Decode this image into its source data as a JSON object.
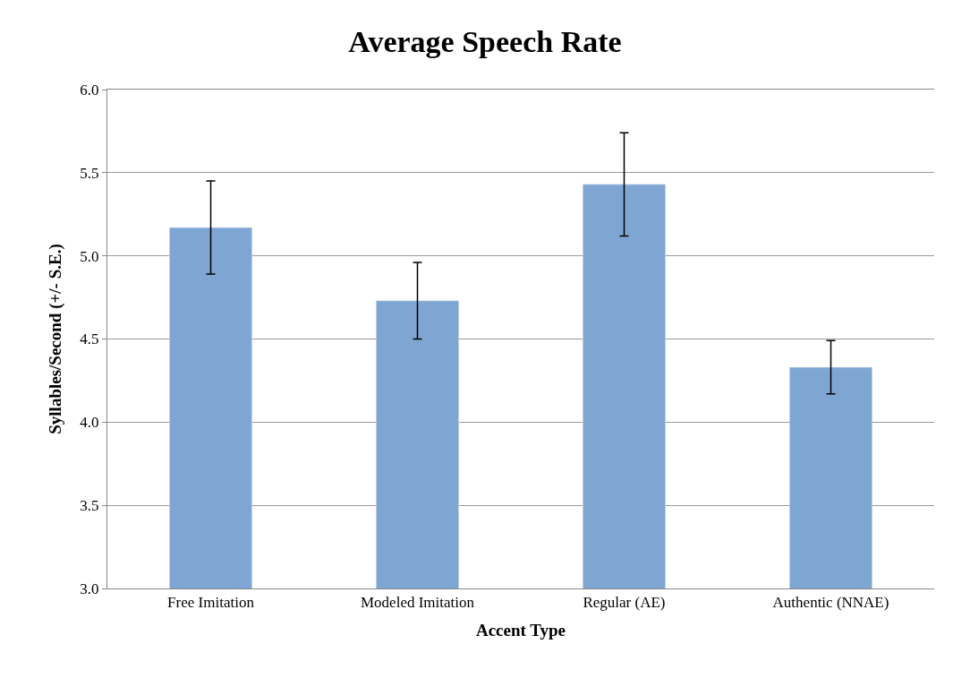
{
  "chart_data": {
    "type": "bar",
    "title": "Average Speech Rate",
    "xlabel": "Accent Type",
    "ylabel": "Syllables/Second (+/- S.E.)",
    "categories": [
      "Free Imitation",
      "Modeled Imitation",
      "Regular (AE)",
      "Authentic (NNAE)"
    ],
    "values": [
      5.17,
      4.73,
      5.43,
      4.33
    ],
    "errors": [
      0.28,
      0.23,
      0.31,
      0.16
    ],
    "color": "#7fa6d2",
    "ylim": [
      3.0,
      6.0
    ],
    "yticks": [
      {
        "value": 3.0,
        "label": "3.0"
      },
      {
        "value": 3.5,
        "label": "3.5"
      },
      {
        "value": 4.0,
        "label": "4.0"
      },
      {
        "value": 4.5,
        "label": "4.5"
      },
      {
        "value": 5.0,
        "label": "5.0"
      },
      {
        "value": 5.5,
        "label": "5.5"
      },
      {
        "value": 6.0,
        "label": "6.0"
      }
    ],
    "grid": "y"
  }
}
